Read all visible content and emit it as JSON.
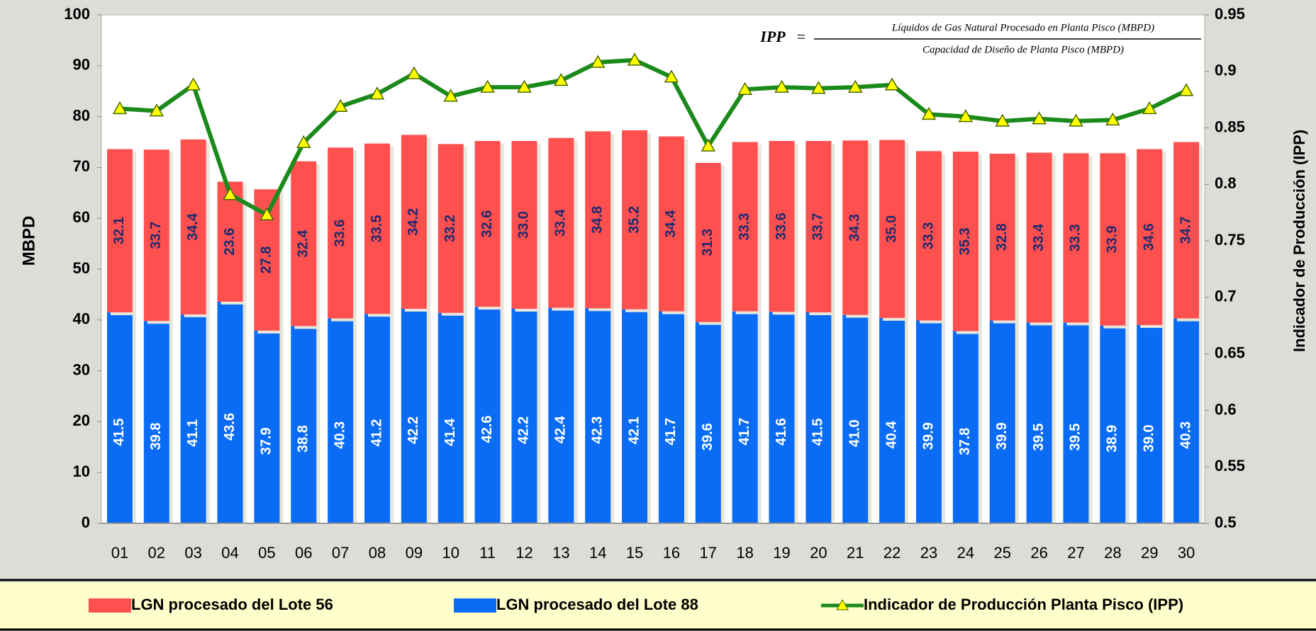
{
  "chart_data": {
    "type": "stacked-bar-line",
    "formula": {
      "lhs": "IPP",
      "equals": "=",
      "numerator": "Líquidos de Gas Natural Procesado en Planta Pisco (MBPD)",
      "denominator": "Capacidad de Diseño de Planta Pisco (MBPD)"
    },
    "ylabel": "MBPD",
    "y2label": "Indicador de Producción (IPP)",
    "categories": [
      "01",
      "02",
      "03",
      "04",
      "05",
      "06",
      "07",
      "08",
      "09",
      "10",
      "11",
      "12",
      "13",
      "14",
      "15",
      "16",
      "17",
      "18",
      "19",
      "20",
      "21",
      "22",
      "23",
      "24",
      "25",
      "26",
      "27",
      "28",
      "29",
      "30"
    ],
    "ylim": [
      0,
      100
    ],
    "yticks": [
      0,
      10,
      20,
      30,
      40,
      50,
      60,
      70,
      80,
      90,
      100
    ],
    "y2lim": [
      0.5,
      0.95
    ],
    "y2ticks": [
      0.5,
      0.55,
      0.6,
      0.65,
      0.7,
      0.75,
      0.8,
      0.85,
      0.9,
      0.95
    ],
    "series": [
      {
        "name": "LGN procesado del Lote 56",
        "color": "#ff5050",
        "values": [
          32.1,
          33.7,
          34.4,
          23.6,
          27.8,
          32.4,
          33.6,
          33.5,
          34.2,
          33.2,
          32.6,
          33.0,
          33.4,
          34.8,
          35.2,
          34.4,
          31.3,
          33.3,
          33.6,
          33.7,
          34.3,
          35.0,
          33.3,
          35.3,
          32.8,
          33.4,
          33.3,
          33.9,
          34.6,
          34.7
        ],
        "value_labels": [
          "32.1",
          "33.7",
          "34.4",
          "23.6",
          "27.8",
          "32.4",
          "33.6",
          "33.5",
          "34.2",
          "33.2",
          "32.6",
          "33.0",
          "33.4",
          "34.8",
          "35.2",
          "34.4",
          "31.3",
          "33.3",
          "33.6",
          "33.7",
          "34.3",
          "35.0",
          "33.3",
          "35.3",
          "32.8",
          "33.4",
          "33.3",
          "33.9",
          "34.6",
          "34.7"
        ]
      },
      {
        "name": "LGN procesado del Lote 88",
        "color": "#0a6cf5",
        "values": [
          41.5,
          39.8,
          41.1,
          43.6,
          37.9,
          38.8,
          40.3,
          41.2,
          42.2,
          41.4,
          42.6,
          42.2,
          42.4,
          42.3,
          42.1,
          41.7,
          39.6,
          41.7,
          41.6,
          41.5,
          41.0,
          40.4,
          39.9,
          37.8,
          39.9,
          39.5,
          39.5,
          38.9,
          39.0,
          40.3
        ],
        "value_labels": [
          "41.5",
          "39.8",
          "41.1",
          "43.6",
          "37.9",
          "38.8",
          "40.3",
          "41.2",
          "42.2",
          "41.4",
          "42.6",
          "42.2",
          "42.4",
          "42.3",
          "42.1",
          "41.7",
          "39.6",
          "41.7",
          "41.6",
          "41.5",
          "41.0",
          "40.4",
          "39.9",
          "37.8",
          "39.9",
          "39.5",
          "39.5",
          "38.9",
          "39.0",
          "40.3"
        ]
      },
      {
        "name": "Indicador de Producción Planta Pisco (IPP)",
        "color": "#1a8a1a",
        "axis": "y2",
        "marker_color": "#ffff00",
        "values": [
          0.867,
          0.865,
          0.888,
          0.791,
          0.773,
          0.837,
          0.869,
          0.88,
          0.898,
          0.878,
          0.886,
          0.886,
          0.892,
          0.908,
          0.91,
          0.895,
          0.834,
          0.884,
          0.886,
          0.885,
          0.886,
          0.888,
          0.862,
          0.86,
          0.856,
          0.858,
          0.856,
          0.857,
          0.867,
          0.883
        ]
      }
    ]
  }
}
